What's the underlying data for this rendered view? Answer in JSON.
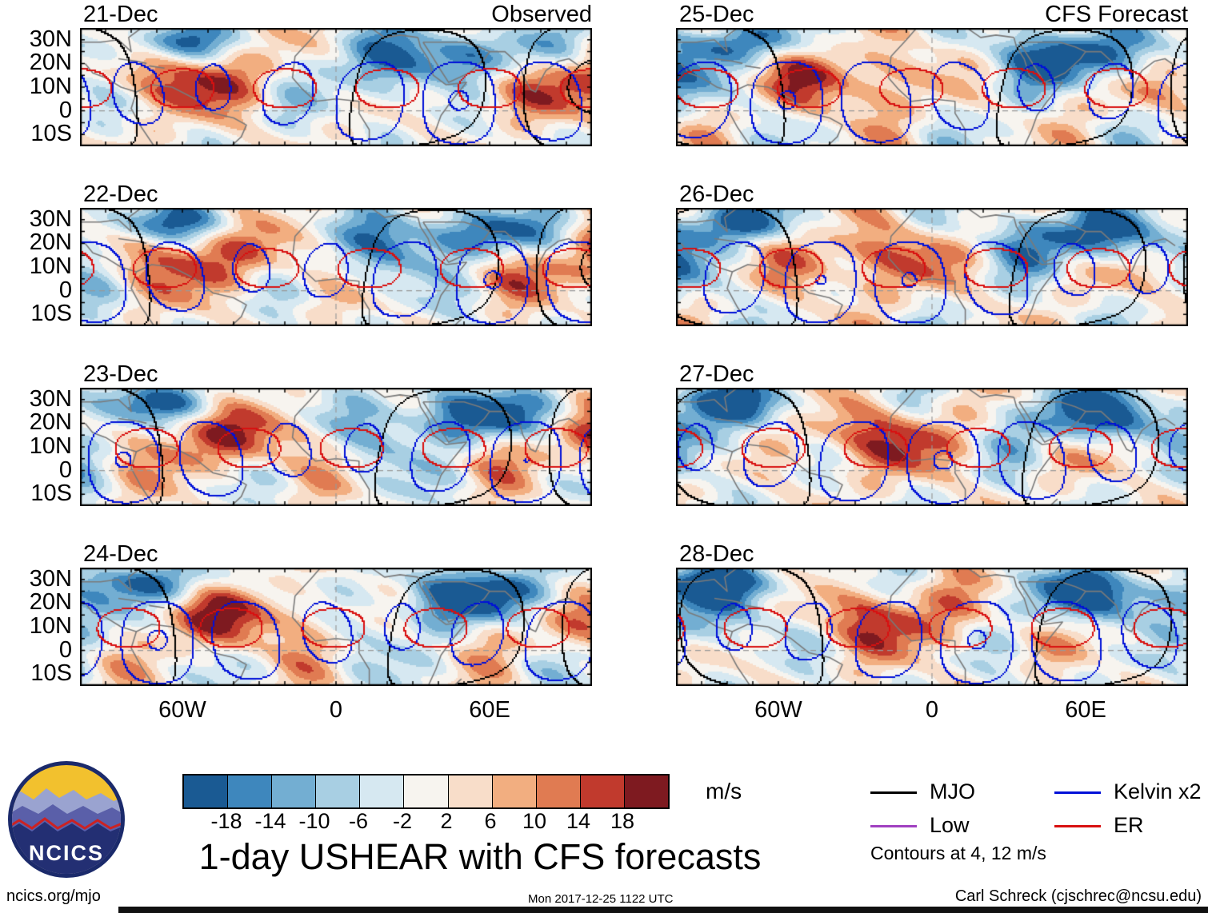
{
  "figure": {
    "title": "1-day USHEAR with CFS forecasts",
    "units": "m/s",
    "logo_text": "NCICS",
    "footer": {
      "left": "ncics.org/mjo",
      "center": "Mon 2017-12-25 1122 UTC",
      "right": "Carl Schreck (cjschrec@ncsu.edu)"
    }
  },
  "columns": [
    {
      "header": "Observed"
    },
    {
      "header": "CFS Forecast"
    }
  ],
  "panels": [
    {
      "label": "21-Dec",
      "column": "Observed"
    },
    {
      "label": "22-Dec",
      "column": "Observed"
    },
    {
      "label": "23-Dec",
      "column": "Observed"
    },
    {
      "label": "24-Dec",
      "column": "Observed"
    },
    {
      "label": "25-Dec",
      "column": "CFS Forecast"
    },
    {
      "label": "26-Dec",
      "column": "CFS Forecast"
    },
    {
      "label": "27-Dec",
      "column": "CFS Forecast"
    },
    {
      "label": "28-Dec",
      "column": "CFS Forecast"
    }
  ],
  "axes": {
    "y_ticks": [
      "30N",
      "20N",
      "10N",
      "0",
      "10S"
    ],
    "x_ticks": [
      "60W",
      "0",
      "60E"
    ]
  },
  "colorbar": {
    "tick_labels": [
      "-18",
      "-14",
      "-10",
      "-6",
      "-2",
      "2",
      "6",
      "10",
      "14",
      "18"
    ],
    "colors": [
      "#1a5a93",
      "#3e87bd",
      "#73aed2",
      "#a8cfe3",
      "#d6e8f1",
      "#f7f4ef",
      "#f8ddc9",
      "#f2ae80",
      "#e07b52",
      "#c13a2d",
      "#7e1a20"
    ],
    "units_label": "m/s"
  },
  "legend": {
    "items": [
      {
        "label": "MJO",
        "color": "#000000"
      },
      {
        "label": "Low",
        "color": "#a040c0"
      },
      {
        "label": "Kelvin x2",
        "color": "#0010d8"
      },
      {
        "label": "ER",
        "color": "#d81010"
      }
    ],
    "note": "Contours at 4, 12 m/s"
  },
  "chart_data": {
    "type": "heatmap",
    "variable": "1-day USHEAR (zonal wind shear) observed and CFS forecast",
    "units": "m/s",
    "title": "1-day USHEAR with CFS forecasts",
    "fill_level_edges": [
      -18,
      -14,
      -10,
      -6,
      -2,
      2,
      6,
      10,
      14,
      18
    ],
    "x_axis": {
      "tick_labels": [
        "60W",
        "0",
        "60E"
      ],
      "range_deg_lon": [
        -100,
        100
      ]
    },
    "y_axis": {
      "tick_labels": [
        "30N",
        "20N",
        "10N",
        "0",
        "10S"
      ],
      "range_deg_lat": [
        -15,
        35
      ]
    },
    "panels": [
      {
        "date": "21-Dec",
        "kind": "Observed"
      },
      {
        "date": "22-Dec",
        "kind": "Observed"
      },
      {
        "date": "23-Dec",
        "kind": "Observed"
      },
      {
        "date": "24-Dec",
        "kind": "Observed"
      },
      {
        "date": "25-Dec",
        "kind": "CFS Forecast"
      },
      {
        "date": "26-Dec",
        "kind": "CFS Forecast"
      },
      {
        "date": "27-Dec",
        "kind": "CFS Forecast"
      },
      {
        "date": "28-Dec",
        "kind": "CFS Forecast"
      }
    ],
    "overlay_contours": {
      "MJO": "black",
      "Low": "purple",
      "Kelvin x2": "blue",
      "ER": "red",
      "contour_levels_m_s": [
        4,
        12
      ]
    },
    "legend_position": "bottom-right",
    "colorbar_position": "bottom-left",
    "grid": false
  }
}
